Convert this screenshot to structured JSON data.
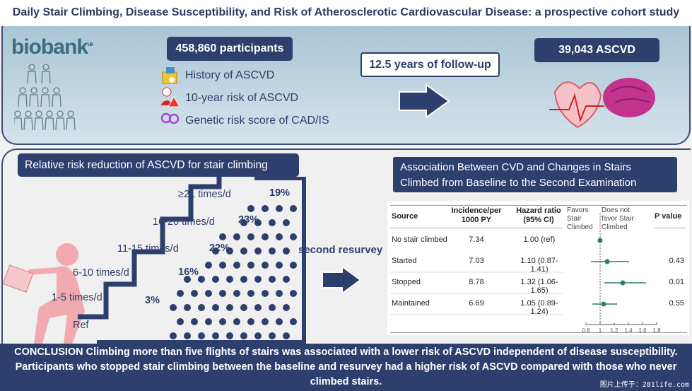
{
  "title": "Daily Stair Climbing, Disease Susceptibility, and Risk of Atherosclerotic Cardiovascular Disease: a prospective cohort study",
  "logo": {
    "text": "biobank",
    "suffix": "uk"
  },
  "participants": "458,860 participants",
  "features": [
    {
      "icon": "medical-folder-icon",
      "label": "History of ASCVD"
    },
    {
      "icon": "person-warning-icon",
      "label": "10-year risk of ASCVD"
    },
    {
      "icon": "dna-icon",
      "label": "Genetic risk score of CAD/IS"
    }
  ],
  "followup": "12.5 years of follow-up",
  "outcome": "39,043 ASCVD",
  "stairs": {
    "title": "Relative risk reduction of ASCVD for stair climbing",
    "steps": [
      {
        "label": "Ref",
        "value": ""
      },
      {
        "label": "1-5 times/d",
        "value": "3%"
      },
      {
        "label": "6-10 times/d",
        "value": "16%"
      },
      {
        "label": "11-15 times/d",
        "value": "22%"
      },
      {
        "label": "16-20 times/d",
        "value": "23%"
      },
      {
        "label": "≥21 times/d",
        "value": "19%"
      }
    ]
  },
  "resurvey": "second resurvey",
  "forest": {
    "title": "Association Between CVD and Changes in Stairs Climbed from Baseline to the Second Examination",
    "headers": {
      "source": "Source",
      "incidence": "Incidence/per 1000 PY",
      "hr": "Hazard ratio (95% CI)",
      "favors": "Favors Stair Climbed",
      "notfavor": "Does not favor Stair Climbed",
      "p": "P value"
    },
    "rows": [
      {
        "source": "No stair climbed",
        "incidence": "7.34",
        "hr_text": "1.00 (ref)",
        "hr": 1.0,
        "lo": 1.0,
        "hi": 1.0,
        "p": ""
      },
      {
        "source": "Started",
        "incidence": "7.03",
        "hr_text": "1.10 (0.87-1.41)",
        "hr": 1.1,
        "lo": 0.87,
        "hi": 1.41,
        "p": "0.43"
      },
      {
        "source": "Stopped",
        "incidence": "8.78",
        "hr_text": "1.32 (1.06-1.65)",
        "hr": 1.32,
        "lo": 1.06,
        "hi": 1.65,
        "p": "0.01"
      },
      {
        "source": "Maintained",
        "incidence": "6.69",
        "hr_text": "1.05 (0.89-1.24)",
        "hr": 1.05,
        "lo": 0.89,
        "hi": 1.24,
        "p": "0.55"
      }
    ],
    "ticks": [
      "0.8",
      "1",
      "1.2",
      "1.4",
      "1.6",
      "1.8"
    ],
    "xlim": [
      0.8,
      1.8
    ],
    "color": "#2a7d70"
  },
  "conclusion": "CONCLUSION Climbing more than five flights of stairs was associated with a lower risk of ASCVD independent of disease susceptibility. Participants who stopped stair climbing between the baseline and resurvey had a higher risk of ASCVD compared with those who never climbed stairs.",
  "watermark": "图片上传于：281life.com"
}
